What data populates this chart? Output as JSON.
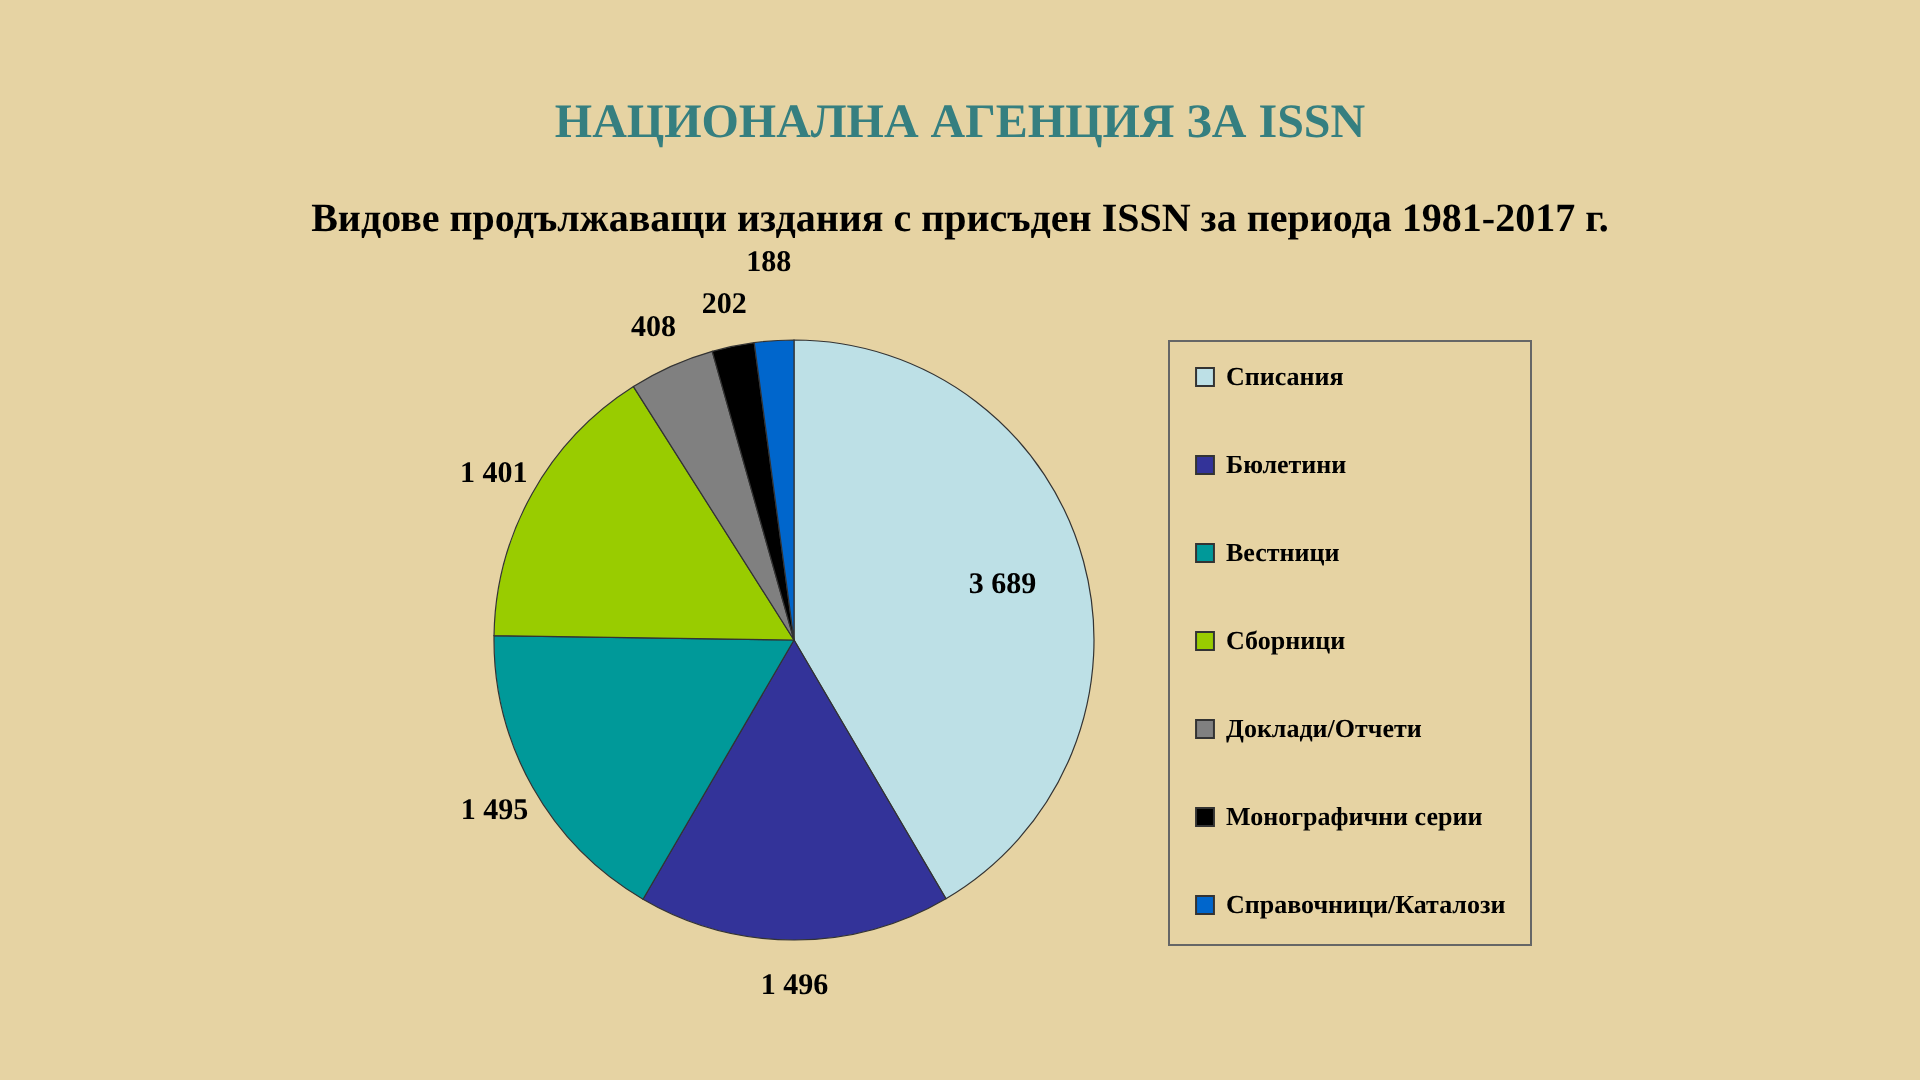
{
  "chart_data": {
    "type": "pie",
    "title": "НАЦИОНАЛНА АГЕНЦИЯ ЗА ISSN",
    "subtitle": "Видове продължаващи издания с присъден ISSN за периода 1981-2017 г.",
    "categories": [
      "Списания",
      "Бюлетини",
      "Вестници",
      "Сборници",
      "Доклади/Отчети",
      "Монографични серии",
      "Справочници/Каталози"
    ],
    "values": [
      3689,
      1496,
      1495,
      1401,
      408,
      202,
      188
    ],
    "colors": [
      "#bde0e6",
      "#333399",
      "#009999",
      "#99cc00",
      "#808080",
      "#000000",
      "#0066cc"
    ],
    "value_labels": [
      "3 689",
      "1 496",
      "1 495",
      "1 401",
      "408",
      "202",
      "188"
    ],
    "legend": "right"
  }
}
